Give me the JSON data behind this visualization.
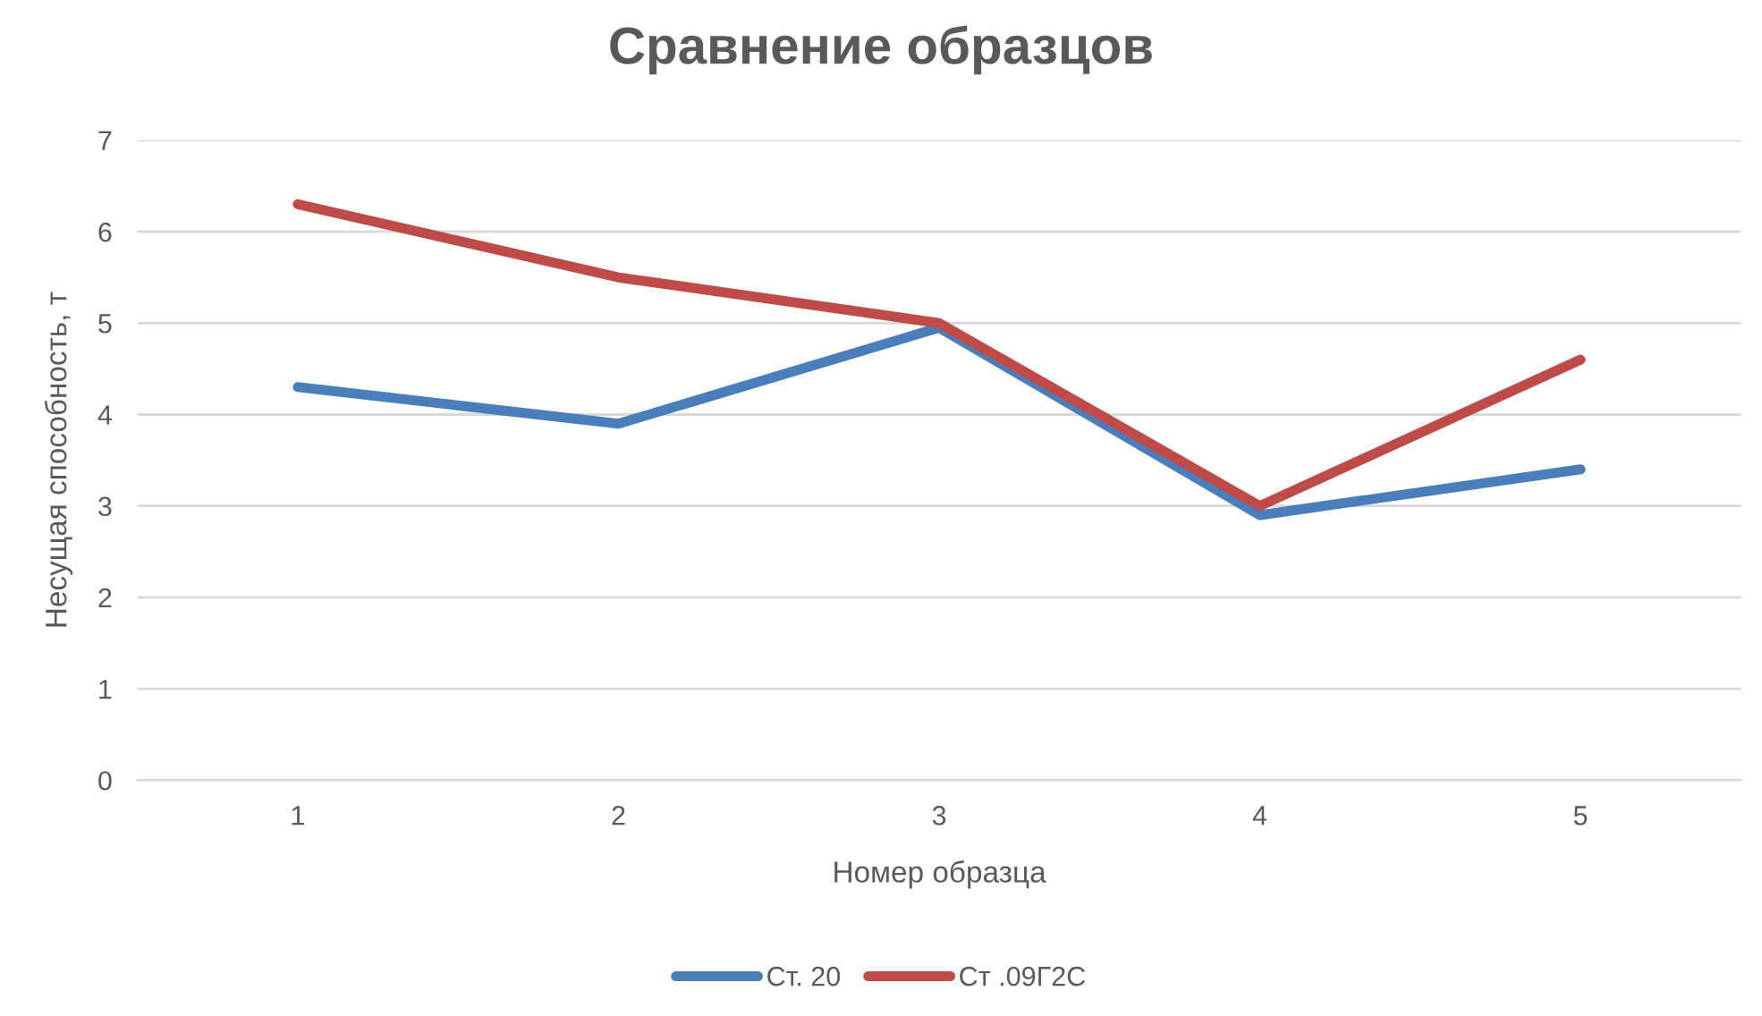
{
  "chart_data": {
    "type": "line",
    "title": "Сравнение образцов",
    "xlabel": "Номер образца",
    "ylabel": "Несущая способность, т",
    "categories": [
      "1",
      "2",
      "3",
      "4",
      "5"
    ],
    "series": [
      {
        "name": "Ст. 20",
        "color": "#4a7ebb",
        "values": [
          4.3,
          3.9,
          4.95,
          2.9,
          3.4
        ]
      },
      {
        "name": "Ст .09Г2С",
        "color": "#be4b48",
        "values": [
          6.3,
          5.5,
          5.0,
          3.0,
          4.6
        ]
      }
    ],
    "ylim": [
      0,
      7
    ],
    "yticks": [
      0,
      1,
      2,
      3,
      4,
      5,
      6,
      7
    ],
    "grid": "y",
    "legend": "bottom",
    "marker": "none",
    "line_style": "solid"
  }
}
